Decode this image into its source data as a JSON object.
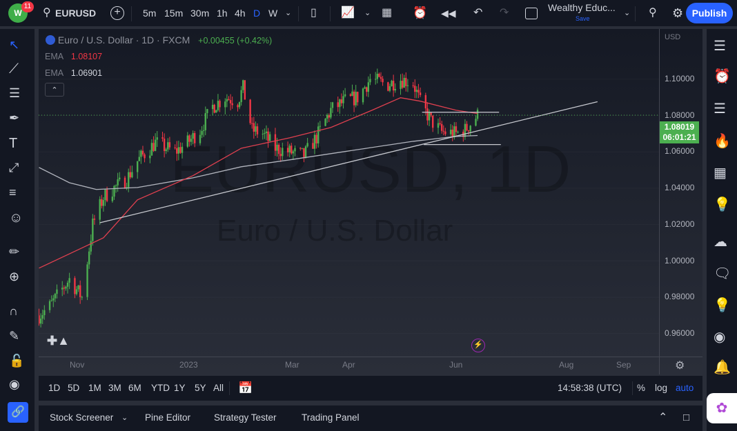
{
  "topbar": {
    "notifications": "11",
    "symbol": "EURUSD",
    "intervals": [
      "5m",
      "15m",
      "30m",
      "1h",
      "4h",
      "D",
      "W"
    ],
    "active_interval": "D",
    "layout_name": "Wealthy Educ...",
    "save_label": "Save",
    "publish": "Publish"
  },
  "legend": {
    "title": "Euro / U.S. Dollar · 1D · FXCM",
    "change": "+0.00455 (+0.42%)",
    "ema1_label": "EMA",
    "ema1_value": "1.08107",
    "ema2_label": "EMA",
    "ema2_value": "1.06901"
  },
  "watermark": {
    "line1": "EURUSD, 1D",
    "line2": "Euro / U.S. Dollar"
  },
  "price_axis": {
    "currency": "USD",
    "ticks": [
      "1.10000",
      "1.08000",
      "1.06000",
      "1.04000",
      "1.02000",
      "1.00000",
      "0.98000",
      "0.96000"
    ],
    "last_price": "1.08019",
    "countdown": "06:01:21"
  },
  "time_axis": {
    "ticks": [
      "Nov",
      "2023",
      "Mar",
      "Apr",
      "Jun",
      "Aug",
      "Sep"
    ]
  },
  "bottombar": {
    "ranges": [
      "1D",
      "5D",
      "1M",
      "3M",
      "6M",
      "YTD",
      "1Y",
      "5Y",
      "All"
    ],
    "clock": "14:58:38 (UTC)",
    "pct": "%",
    "log": "log",
    "auto": "auto"
  },
  "panel": {
    "tabs": [
      "Stock Screener",
      "Pine Editor",
      "Strategy Tester",
      "Trading Panel"
    ]
  },
  "colors": {
    "up": "#4caf50",
    "down": "#f23645",
    "ema1": "#e0404f",
    "ema2": "#b2b5be",
    "accent": "#2962ff"
  },
  "chart_data": {
    "type": "candlestick",
    "symbol": "EURUSD",
    "ylim": [
      0.955,
      1.115
    ],
    "close_path": [
      [
        "2022-10-11",
        0.97
      ],
      [
        "2022-10-17",
        0.975
      ],
      [
        "2022-10-28",
        0.99
      ],
      [
        "2022-11-04",
        0.98
      ],
      [
        "2022-11-10",
        1.02
      ],
      [
        "2022-11-16",
        1.035
      ],
      [
        "2022-11-22",
        1.04
      ],
      [
        "2022-11-29",
        1.045
      ],
      [
        "2022-12-05",
        1.055
      ],
      [
        "2022-12-15",
        1.065
      ],
      [
        "2022-12-26",
        1.06
      ],
      [
        "2023-01-02",
        1.065
      ],
      [
        "2023-01-09",
        1.072
      ],
      [
        "2023-01-16",
        1.085
      ],
      [
        "2023-01-23",
        1.09
      ],
      [
        "2023-01-30",
        1.088
      ],
      [
        "2023-02-02",
        1.095
      ],
      [
        "2023-02-07",
        1.072
      ],
      [
        "2023-02-13",
        1.07
      ],
      [
        "2023-02-20",
        1.062
      ],
      [
        "2023-02-28",
        1.06
      ],
      [
        "2023-03-08",
        1.058
      ],
      [
        "2023-03-15",
        1.068
      ],
      [
        "2023-03-23",
        1.083
      ],
      [
        "2023-03-31",
        1.088
      ],
      [
        "2023-04-07",
        1.09
      ],
      [
        "2023-04-14",
        1.1
      ],
      [
        "2023-04-24",
        1.097
      ],
      [
        "2023-05-01",
        1.1
      ],
      [
        "2023-05-08",
        1.098
      ],
      [
        "2023-05-12",
        1.087
      ],
      [
        "2023-05-18",
        1.077
      ],
      [
        "2023-05-24",
        1.071
      ],
      [
        "2023-06-01",
        1.07
      ],
      [
        "2023-06-06",
        1.072
      ],
      [
        "2023-06-13",
        1.0802
      ]
    ],
    "ema_red": [
      [
        "2022-10-11",
        0.996
      ],
      [
        "2022-11-16",
        1.0127
      ],
      [
        "2022-12-05",
        1.0336
      ],
      [
        "2023-01-05",
        1.0469
      ],
      [
        "2023-02-01",
        1.062
      ],
      [
        "2023-02-28",
        1.0677
      ],
      [
        "2023-03-23",
        1.0734
      ],
      [
        "2023-04-15",
        1.0829
      ],
      [
        "2023-05-01",
        1.0898
      ],
      [
        "2023-05-12",
        1.0879
      ],
      [
        "2023-06-01",
        1.0829
      ],
      [
        "2023-06-13",
        1.0811
      ]
    ],
    "ema_grey": [
      [
        "2022-10-11",
        1.0514
      ],
      [
        "2022-10-28",
        1.043
      ],
      [
        "2022-11-12",
        1.0393
      ],
      [
        "2022-12-05",
        1.0404
      ],
      [
        "2023-01-05",
        1.0457
      ],
      [
        "2023-02-01",
        1.0518
      ],
      [
        "2023-02-28",
        1.0556
      ],
      [
        "2023-03-31",
        1.0602
      ],
      [
        "2023-05-08",
        1.0658
      ],
      [
        "2023-06-01",
        1.0685
      ],
      [
        "2023-06-13",
        1.069
      ]
    ],
    "drawings": [
      {
        "type": "trendline",
        "points": [
          [
            "2022-11-14",
            1.021
          ],
          [
            "2023-08-19",
            1.0876
          ]
        ]
      },
      {
        "type": "horizontal",
        "points": [
          [
            "2023-05-13",
            1.0818
          ],
          [
            "2023-06-25",
            1.0818
          ]
        ]
      },
      {
        "type": "horizontal",
        "points": [
          [
            "2023-05-14",
            1.064
          ],
          [
            "2023-06-26",
            1.064
          ]
        ]
      }
    ]
  }
}
